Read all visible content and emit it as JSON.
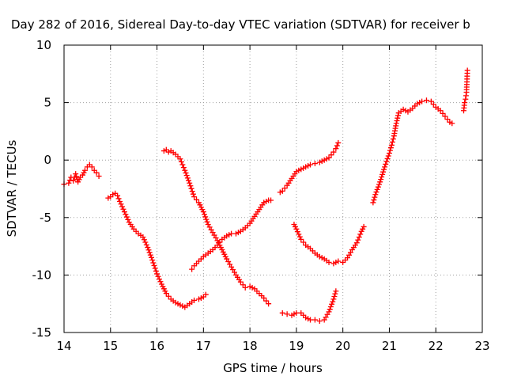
{
  "chart_data": {
    "type": "scatter",
    "title": "Day 282 of 2016, Sidereal Day-to-day VTEC variation (SDTVAR) for receiver b",
    "xlabel": "GPS time / hours",
    "ylabel": "SDTVAR / TECUs",
    "xlim": [
      14,
      23
    ],
    "ylim": [
      -15,
      10
    ],
    "xticks": [
      14,
      15,
      16,
      17,
      18,
      19,
      20,
      21,
      22,
      23
    ],
    "yticks": [
      -15,
      -10,
      -5,
      0,
      5,
      10
    ],
    "grid": true,
    "marker": "+",
    "color": "#ff0000",
    "segments": [
      {
        "x": [
          14.0,
          14.1,
          14.15,
          14.2,
          14.25,
          14.3,
          14.35,
          14.4,
          14.45,
          14.5,
          14.55,
          14.6,
          14.65,
          14.7,
          14.75
        ],
        "y": [
          -2.1,
          -2.0,
          -1.5,
          -1.8,
          -1.2,
          -1.9,
          -1.5,
          -1.3,
          -0.9,
          -0.6,
          -0.4,
          -0.6,
          -0.9,
          -1.1,
          -1.4
        ]
      },
      {
        "x": [
          14.95,
          15.0,
          15.05,
          15.1,
          15.15,
          15.2,
          15.3,
          15.4,
          15.5,
          15.6,
          15.7,
          15.8,
          15.9,
          16.0,
          16.1,
          16.2,
          16.3,
          16.4,
          16.5,
          16.6,
          16.7,
          16.8,
          16.9,
          17.0,
          17.05
        ],
        "y": [
          -3.3,
          -3.2,
          -3.0,
          -2.9,
          -3.1,
          -3.6,
          -4.5,
          -5.4,
          -6.0,
          -6.4,
          -6.7,
          -7.6,
          -8.7,
          -9.9,
          -10.8,
          -11.6,
          -12.1,
          -12.4,
          -12.6,
          -12.8,
          -12.5,
          -12.2,
          -12.1,
          -11.9,
          -11.7
        ]
      },
      {
        "x": [
          16.15,
          16.2,
          16.25,
          16.3,
          16.4,
          16.5,
          16.6,
          16.7,
          16.8,
          16.9,
          17.0,
          17.1,
          17.2,
          17.3,
          17.4,
          17.5,
          17.6,
          17.7,
          17.8,
          17.9,
          18.0,
          18.1,
          18.2,
          18.3,
          18.4
        ],
        "y": [
          0.8,
          0.9,
          0.7,
          0.8,
          0.5,
          0.1,
          -0.9,
          -2.0,
          -3.2,
          -3.7,
          -4.5,
          -5.6,
          -6.3,
          -7.0,
          -7.8,
          -8.6,
          -9.3,
          -10.0,
          -10.6,
          -11.1,
          -11.0,
          -11.2,
          -11.6,
          -12.0,
          -12.5
        ]
      },
      {
        "x": [
          16.75,
          16.8,
          16.9,
          17.0,
          17.1,
          17.2,
          17.3,
          17.4,
          17.5,
          17.6,
          17.7,
          17.8,
          17.9,
          18.0,
          18.1,
          18.2,
          18.3,
          18.4,
          18.45
        ],
        "y": [
          -9.5,
          -9.2,
          -8.8,
          -8.4,
          -8.1,
          -7.8,
          -7.4,
          -6.9,
          -6.6,
          -6.4,
          -6.4,
          -6.2,
          -5.9,
          -5.5,
          -4.9,
          -4.3,
          -3.7,
          -3.5,
          -3.5
        ]
      },
      {
        "x": [
          18.65,
          18.7,
          18.8,
          18.9,
          19.0,
          19.1,
          19.2,
          19.3,
          19.4,
          19.5,
          19.6,
          19.7,
          19.8,
          19.85,
          19.9
        ],
        "y": [
          -2.8,
          -2.7,
          -2.2,
          -1.6,
          -1.0,
          -0.8,
          -0.6,
          -0.4,
          -0.3,
          -0.2,
          0.0,
          0.2,
          0.7,
          1.0,
          1.5
        ]
      },
      {
        "x": [
          18.7,
          18.8,
          18.9,
          19.0,
          19.1,
          19.2,
          19.3,
          19.4,
          19.5,
          19.6,
          19.7,
          19.8,
          19.85
        ],
        "y": [
          -13.3,
          -13.4,
          -13.5,
          -13.3,
          -13.3,
          -13.7,
          -13.9,
          -13.9,
          -14.0,
          -13.9,
          -13.2,
          -12.1,
          -11.4
        ]
      },
      {
        "x": [
          18.95,
          19.0,
          19.1,
          19.2,
          19.3,
          19.4,
          19.5,
          19.6,
          19.7,
          19.8,
          19.9,
          20.0,
          20.1,
          20.2,
          20.3,
          20.4,
          20.45
        ],
        "y": [
          -5.6,
          -6.0,
          -6.9,
          -7.4,
          -7.7,
          -8.1,
          -8.4,
          -8.6,
          -8.9,
          -9.0,
          -8.8,
          -8.9,
          -8.5,
          -7.8,
          -7.2,
          -6.2,
          -5.8
        ]
      },
      {
        "x": [
          20.65,
          20.7,
          20.8,
          20.9,
          21.0,
          21.05,
          21.1,
          21.15,
          21.2,
          21.3,
          21.4,
          21.5,
          21.6,
          21.7,
          21.8,
          21.9,
          22.0,
          22.1,
          22.2,
          22.3,
          22.35
        ],
        "y": [
          -3.7,
          -3.0,
          -1.9,
          -0.6,
          0.6,
          1.3,
          2.1,
          3.2,
          4.1,
          4.4,
          4.2,
          4.5,
          4.9,
          5.1,
          5.2,
          5.1,
          4.6,
          4.3,
          3.8,
          3.3,
          3.2
        ]
      },
      {
        "x": [
          22.6,
          22.62,
          22.64,
          22.65,
          22.66,
          22.67,
          22.68
        ],
        "y": [
          4.3,
          5.0,
          5.3,
          5.6,
          5.9,
          6.8,
          7.8
        ]
      }
    ]
  }
}
